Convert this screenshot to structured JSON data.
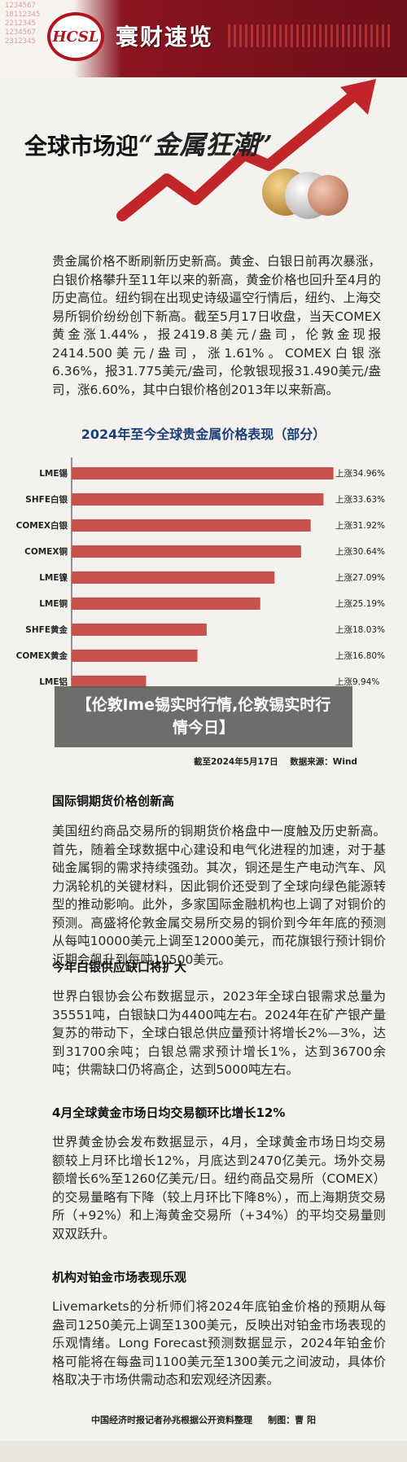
{
  "header": {
    "logo": "HCSL",
    "brand": "寰财速览",
    "ticker_numbers": [
      "1234567",
      "18112345",
      "2212345",
      "1234567",
      "2312345"
    ]
  },
  "hero": {
    "title_main": "全球市场迎",
    "title_script": "“金属狂潮”"
  },
  "intro": "贵金属价格不断刷新历史新高。黄金、白银日前再次暴涨，白银价格攀升至11年以来的新高，黄金价格也回升至4月的历史高位。纽约铜在出现史诗级逼空行情后，纽约、上海交易所铜价纷纷创下新高。截至5月17日收盘，当天COMEX黄金涨1.44%，报2419.8美元/盎司，伦敦金现报2414.500美元/盎司，涨1.61%。COMEX白银涨6.36%，报31.775美元/盎司，伦敦银现报31.490美元/盎司，涨6.60%，其中白银价格创2013年以来新高。",
  "chart_data": {
    "type": "bar",
    "orientation": "horizontal",
    "title": "2024年至今全球贵金属价格表现（部分）",
    "categories": [
      "LME锡",
      "SHFE白银",
      "COMEX白银",
      "COMEX铜",
      "LME镍",
      "LME铜",
      "SHFE黄金",
      "COMEX黄金",
      "LME铝"
    ],
    "values": [
      34.96,
      33.63,
      31.92,
      30.64,
      27.09,
      25.19,
      18.03,
      16.8,
      9.94
    ],
    "labels": [
      "上涨34.96%",
      "上涨33.63%",
      "上涨31.92%",
      "上涨30.64%",
      "上涨27.09%",
      "上涨25.19%",
      "上涨18.03%",
      "上涨16.80%",
      "上涨9.94%"
    ],
    "xlim": [
      0,
      35
    ],
    "bar_color": "#c9514b",
    "footnote_date": "截至2024年5月17日",
    "footnote_source": "数据来源：Wind"
  },
  "overlay": {
    "line1": "【伦敦lme锡实时行情,伦敦锡实时行",
    "line2": "情今日】"
  },
  "sections": [
    {
      "title": "国际铜期货价格创新高",
      "body": "美国纽约商品交易所的铜期货价格盘中一度触及历史新高。首先，随着全球数据中心建设和电气化进程的加速，对于基础金属铜的需求持续强劲。其次，铜还是生产电动汽车、风力涡轮机的关键材料，因此铜价还受到了全球向绿色能源转型的推动影响。此外，多家国际金融机构也上调了对铜价的预测。高盛将伦敦金属交易所交易的铜价到今年年底的预测从每吨10000美元上调至12000美元，而花旗银行预计铜价近期会飙升到每吨10500美元。"
    },
    {
      "title": "今年白银供应缺口将扩大",
      "body": "世界白银协会公布数据显示，2023年全球白银需求总量为35551吨，白银缺口为4400吨左右。2024年在矿产银产量复苏的带动下，全球白银总供应量预计将增长2%—3%，达到31700余吨；白银总需求预计增长1%，达到36700余吨；供需缺口仍将高企，达到5000吨左右。"
    },
    {
      "title": "4月全球黄金市场日均交易额环比增长12%",
      "body": "世界黄金协会发布数据显示，4月，全球黄金市场日均交易额较上月环比增长12%，月底达到2470亿美元。场外交易额增长6%至1260亿美元/日。纽约商品交易所（COMEX）的交易量略有下降（较上月环比下降8%），而上海期货交易所（+92%）和上海黄金交易所（+34%）的平均交易量则双双跃升。"
    },
    {
      "title": "机构对铂金市场表现乐观",
      "body": "Livemarkets的分析师们将2024年底铂金价格的预期从每盎司1250美元上调至1300美元，反映出对铂金市场表现的乐观情绪。Long Forecast预测数据显示，2024年铂金价格可能将在每盎司1100美元至1300美元之间波动，具体价格取决于市场供需动态和宏观经济因素。"
    }
  ],
  "footer": {
    "credit": "中国经济时报记者孙兆根据公开资料整理",
    "maker": "制图：曹 阳"
  }
}
